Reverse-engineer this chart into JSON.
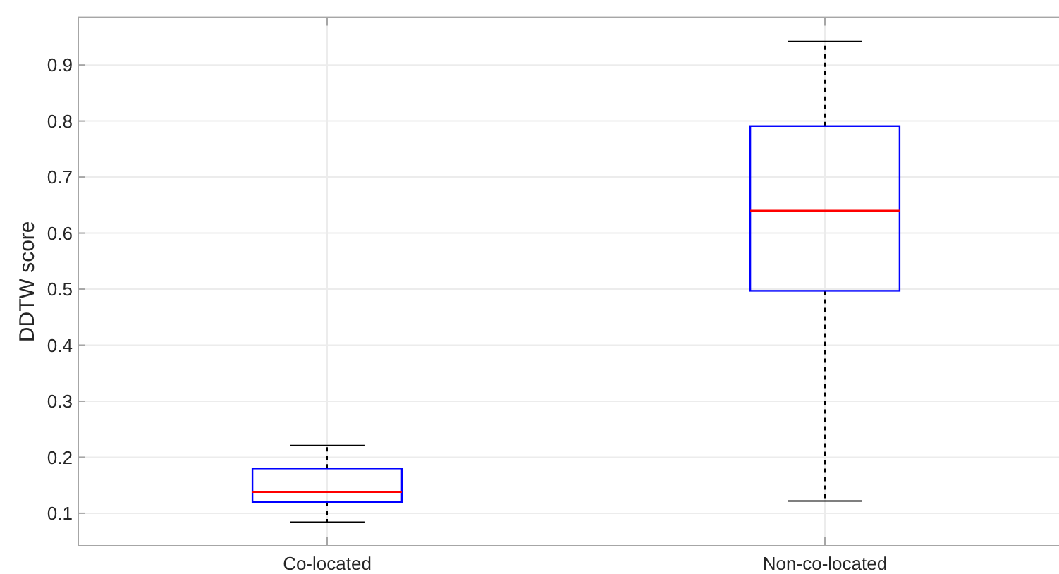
{
  "chart_data": {
    "type": "box",
    "ylabel": "DDTW score",
    "categories": [
      "Co-located",
      "Non-co-located"
    ],
    "boxes": [
      {
        "low": 0.084,
        "q1": 0.12,
        "median": 0.138,
        "q3": 0.18,
        "high": 0.221
      },
      {
        "low": 0.122,
        "q1": 0.497,
        "median": 0.64,
        "q3": 0.791,
        "high": 0.942
      }
    ],
    "color": "#0000ff",
    "ylim": [
      0.042,
      0.985
    ],
    "yticks": [
      0.1,
      0.2,
      0.3,
      0.4,
      0.5,
      0.6,
      0.7,
      0.8,
      0.9
    ],
    "grid": true
  }
}
